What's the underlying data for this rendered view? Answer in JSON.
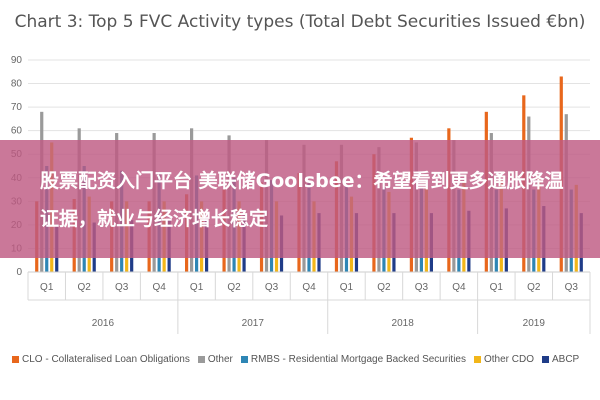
{
  "chart_data": {
    "type": "bar",
    "title": "Chart 3: Top 5 FVC Activity types (Total Debt Securities Issued €bn)",
    "ylim": [
      0,
      90
    ],
    "yticks": [
      0,
      10,
      20,
      30,
      40,
      50,
      60,
      70,
      80,
      90
    ],
    "grid": true,
    "legend_position": "bottom",
    "categories": [
      "Q1",
      "Q2",
      "Q3",
      "Q4",
      "Q1",
      "Q2",
      "Q3",
      "Q4",
      "Q1",
      "Q2",
      "Q3",
      "Q4",
      "Q1",
      "Q2",
      "Q3"
    ],
    "years": [
      {
        "label": "2016",
        "start": 0,
        "end": 3
      },
      {
        "label": "2017",
        "start": 4,
        "end": 7
      },
      {
        "label": "2018",
        "start": 8,
        "end": 11
      },
      {
        "label": "2019",
        "start": 12,
        "end": 14
      }
    ],
    "series": [
      {
        "name": "CLO - Collateralised Loan Obligations",
        "color": "#e8671c",
        "values": [
          30,
          31,
          30,
          30,
          33,
          35,
          38,
          42,
          47,
          50,
          57,
          61,
          68,
          75,
          83
        ]
      },
      {
        "name": "Other",
        "color": "#9a9a9a",
        "values": [
          68,
          61,
          59,
          59,
          61,
          58,
          56,
          54,
          54,
          53,
          55,
          56,
          59,
          66,
          67
        ]
      },
      {
        "name": "RMBS - Residential Mortgage Backed Securities",
        "color": "#2e86b5",
        "values": [
          45,
          45,
          43,
          42,
          41,
          40,
          39,
          38,
          37,
          36,
          36,
          35,
          35,
          35,
          35
        ]
      },
      {
        "name": "Other CDO",
        "color": "#f2b619",
        "values": [
          55,
          32,
          30,
          30,
          30,
          30,
          30,
          30,
          32,
          34,
          36,
          38,
          39,
          40,
          37
        ]
      },
      {
        "name": "ABCP",
        "color": "#1f3c88",
        "values": [
          20,
          21,
          22,
          22,
          23,
          24,
          24,
          25,
          25,
          25,
          25,
          26,
          27,
          28,
          25
        ]
      }
    ]
  },
  "banner": {
    "text": "股票配资入门平台 美联储Goolsbee：希望看到更多通胀降温证据，就业与经济增长稳定"
  }
}
